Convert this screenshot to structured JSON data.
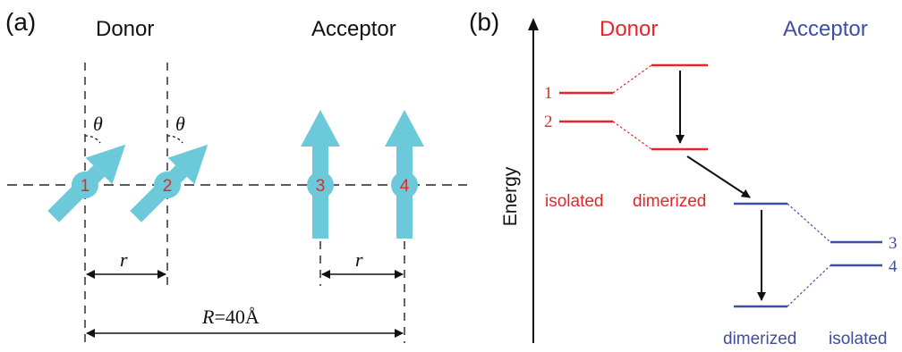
{
  "panel_a": {
    "label": "(a)",
    "donor_title": "Donor",
    "acceptor_title": "Acceptor",
    "angle_symbol": "θ",
    "site_labels": [
      "1",
      "2",
      "3",
      "4"
    ],
    "separation_small": "r",
    "separation_large_symbol": "R",
    "separation_large_value": "=40Å"
  },
  "panel_b": {
    "label": "(b)",
    "donor_title": "Donor",
    "acceptor_title": "Acceptor",
    "energy_axis_label": "Energy",
    "donor_isolated_label": "isolated",
    "donor_dimerized_label": "dimerized",
    "acceptor_dimerized_label": "dimerized",
    "acceptor_isolated_label": "isolated",
    "donor_level_labels": [
      "1",
      "2"
    ],
    "acceptor_level_labels": [
      "3",
      "4"
    ]
  },
  "colors": {
    "donor": "#e8242b",
    "acceptor": "#3d4ea3",
    "dipole_arrow": "#6cc9d9",
    "dashed_line": "#222222",
    "text": "#111111"
  }
}
